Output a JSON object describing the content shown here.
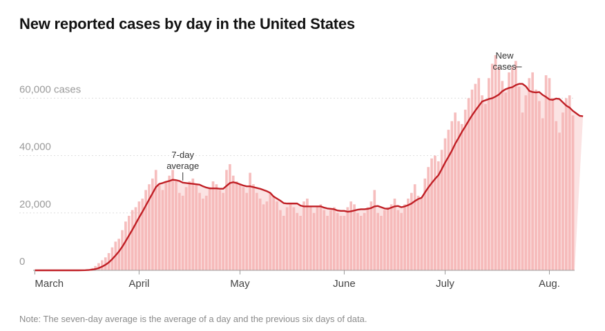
{
  "title": "New reported cases by day in the United States",
  "note": "Note: The seven-day average is the average of a day and the previous six days of data.",
  "colors": {
    "bars": "#f4b3b3",
    "average_line": "#c01f25",
    "average_fill": "#fbe3e3",
    "gridline": "#dddddd"
  },
  "chart_data": {
    "type": "bar",
    "title": "New reported cases by day in the United States",
    "xlabel": "",
    "ylabel": "cases",
    "ylim": [
      0,
      75000
    ],
    "yticks": [
      {
        "value": 0,
        "label": "0"
      },
      {
        "value": 20000,
        "label": "20,000"
      },
      {
        "value": 40000,
        "label": "40,000"
      },
      {
        "value": 60000,
        "label": "60,000 cases"
      }
    ],
    "xticks": [
      {
        "day": 0,
        "label": "March"
      },
      {
        "day": 31,
        "label": "April"
      },
      {
        "day": 61,
        "label": "May"
      },
      {
        "day": 92,
        "label": "June"
      },
      {
        "day": 122,
        "label": "July"
      },
      {
        "day": 153,
        "label": "Aug."
      }
    ],
    "x_start": "March 1",
    "series": [
      {
        "name": "New cases",
        "values": [
          0,
          0,
          0,
          0,
          0,
          0,
          0,
          0,
          0,
          0,
          0,
          0,
          0,
          0,
          100,
          200,
          400,
          800,
          1500,
          2500,
          3500,
          4500,
          6000,
          8000,
          10000,
          11000,
          14000,
          17000,
          19000,
          21000,
          22000,
          24000,
          25000,
          28000,
          30000,
          32000,
          35000,
          30000,
          28000,
          31000,
          33000,
          35000,
          31000,
          27000,
          26000,
          29000,
          31000,
          32000,
          30000,
          27000,
          25000,
          26000,
          29000,
          31000,
          30000,
          28000,
          27000,
          35000,
          37000,
          33000,
          31000,
          30000,
          29000,
          27000,
          34000,
          30000,
          27000,
          25000,
          23000,
          24000,
          27000,
          26000,
          24000,
          21000,
          19000,
          22000,
          23000,
          22000,
          20000,
          19000,
          24000,
          25000,
          22000,
          20000,
          22000,
          23000,
          21000,
          19000,
          21000,
          22000,
          20000,
          19000,
          19000,
          22000,
          24000,
          23000,
          20000,
          19000,
          20000,
          22000,
          24000,
          28000,
          20000,
          19000,
          21000,
          22000,
          23000,
          25000,
          21000,
          20000,
          23000,
          25000,
          27000,
          30000,
          26000,
          25000,
          32000,
          36000,
          39000,
          40000,
          38000,
          42000,
          46000,
          49000,
          52000,
          55000,
          52000,
          51000,
          56000,
          60000,
          63000,
          65000,
          67000,
          61000,
          58000,
          67000,
          72000,
          75000,
          71000,
          66000,
          62000,
          69000,
          71000,
          73000,
          64000,
          55000,
          61000,
          67000,
          69000,
          63000,
          59000,
          53000,
          68000,
          67000,
          60000,
          52000,
          48000,
          55000,
          60000,
          61000,
          54000
        ]
      },
      {
        "name": "7-day average",
        "values": [
          0,
          0,
          0,
          0,
          0,
          0,
          0,
          0,
          0,
          0,
          0,
          0,
          0,
          0,
          15,
          43,
          100,
          214,
          429,
          786,
          1286,
          1929,
          2771,
          3886,
          5171,
          6571,
          8214,
          10143,
          12143,
          14143,
          16286,
          18429,
          20429,
          22571,
          24714,
          26857,
          29000,
          30143,
          30429,
          30857,
          31143,
          31571,
          31429,
          31143,
          30571,
          30429,
          30286,
          30143,
          30000,
          29857,
          29286,
          28857,
          28571,
          28571,
          28571,
          28429,
          28429,
          29429,
          30429,
          30714,
          30429,
          30000,
          29571,
          29286,
          29286,
          29000,
          28714,
          28429,
          28000,
          27571,
          27000,
          25714,
          25000,
          24286,
          23429,
          23286,
          23286,
          23286,
          23286,
          22571,
          22286,
          22286,
          22286,
          22286,
          22286,
          22286,
          21857,
          21571,
          21429,
          21286,
          20857,
          20714,
          20714,
          20429,
          20571,
          20857,
          21143,
          21286,
          21286,
          21429,
          21714,
          22286,
          22429,
          22000,
          21571,
          21429,
          21857,
          22286,
          22429,
          22000,
          22286,
          22714,
          23286,
          24143,
          24857,
          25286,
          27143,
          28857,
          30429,
          31857,
          33143,
          35286,
          37571,
          39571,
          41714,
          44143,
          46143,
          48286,
          50143,
          52143,
          54000,
          55714,
          57286,
          58857,
          59286,
          59714,
          60000,
          60571,
          61286,
          62429,
          63143,
          63571,
          63857,
          64571,
          65000,
          65000,
          64143,
          62571,
          62143,
          62000,
          62143,
          61143,
          60429,
          59571,
          59429,
          59857,
          59714,
          58571,
          57429,
          56714,
          55571,
          54714,
          53857,
          53714
        ]
      }
    ],
    "annotations": [
      {
        "text_lines": [
          "7-day",
          "average"
        ],
        "target_series": "7-day average",
        "day": 44
      },
      {
        "text_lines": [
          "New",
          "cases"
        ],
        "target_series": "New cases",
        "day": 145
      }
    ]
  }
}
